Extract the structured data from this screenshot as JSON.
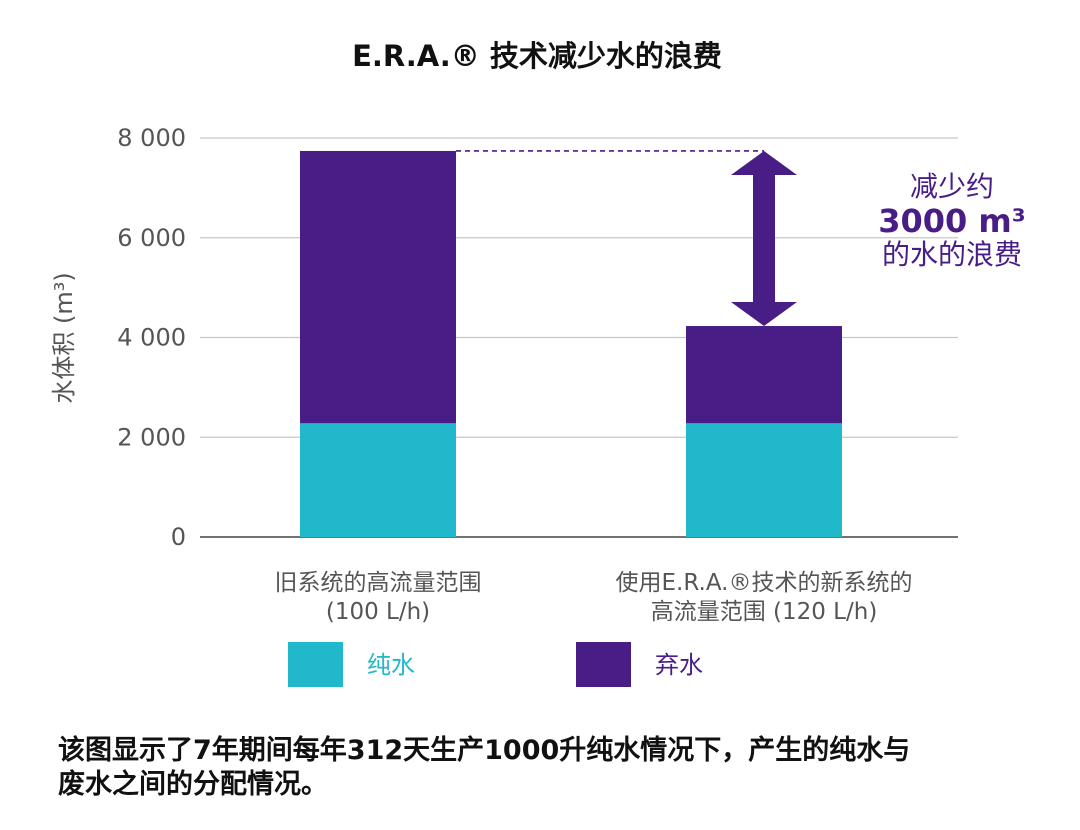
{
  "chart_data": {
    "type": "bar",
    "stacked": true,
    "title": "E.R.A.® 技术减少水的浪费",
    "ylabel": "水体积 (m³)",
    "xlabel": "",
    "ylim": [
      0,
      8000
    ],
    "yticks": [
      0,
      2000,
      4000,
      6000,
      8000
    ],
    "ytick_labels": [
      "0",
      "2 000",
      "4 000",
      "6 000",
      "8 000"
    ],
    "grid": true,
    "categories": [
      {
        "line1": "旧系统的高流量范围",
        "line2": "(100 L/h)"
      },
      {
        "line1": "使用E.R.A.®技术的新系统的",
        "line2": "高流量范围 (120 L/h)"
      }
    ],
    "series": [
      {
        "name": "纯水",
        "color": "#22b8cc",
        "values": [
          2280,
          2280
        ]
      },
      {
        "name": "弃水",
        "color": "#491d86",
        "values": [
          5460,
          1950
        ]
      }
    ],
    "legend_position": "bottom",
    "annotation": {
      "line1": "减少约",
      "line2": "3000 m³",
      "line3": "的水的浪费",
      "color": "#491d86",
      "from_value": 7740,
      "to_value": 4230
    }
  },
  "caption": {
    "line1": "该图显示了7年期间每年312天生产1000升纯水情况下，产生的纯水与",
    "line2": "废水之间的分配情况。"
  }
}
